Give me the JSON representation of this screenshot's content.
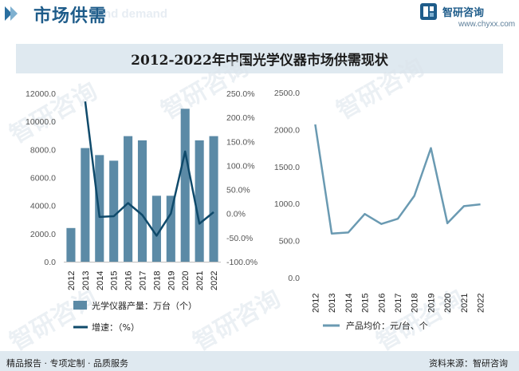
{
  "header": {
    "title": "市场供需",
    "ghost_text": "nd demand"
  },
  "logo": {
    "name": "智研咨询",
    "url": "www.chyxx.com"
  },
  "watermark": "智研咨询",
  "colors": {
    "brand": "#1e5c8a",
    "bar": "#5b8aa6",
    "growth_line": "#0f4a6b",
    "price_line": "#6a9ab2",
    "banner_bg": "#dfe9f0"
  },
  "chart_data": [
    {
      "type": "bar",
      "title": "2012-2022年中国光学仪器市场供需现状",
      "categories": [
        "2012",
        "2013",
        "2014",
        "2015",
        "2016",
        "2017",
        "2018",
        "2019",
        "2020",
        "2021",
        "2022"
      ],
      "series": [
        {
          "name": "光学仪器产量：万台（个）",
          "type": "bar",
          "axis": "left",
          "values": [
            2400,
            8100,
            7600,
            7200,
            8950,
            8650,
            4700,
            4700,
            10900,
            8650,
            8950
          ]
        },
        {
          "name": "增速：（%）",
          "type": "line",
          "axis": "right",
          "values": [
            null,
            233.0,
            -7.0,
            -5.5,
            22.0,
            -3.0,
            -46.0,
            0.0,
            129.0,
            -21.0,
            3.0
          ]
        }
      ],
      "left_axis": {
        "ticks": [
          "0.0",
          "2000.0",
          "4000.0",
          "6000.0",
          "8000.0",
          "10000.0",
          "12000.0"
        ],
        "ylim": [
          0,
          12000
        ]
      },
      "right_axis": {
        "ticks": [
          "-100.0%",
          "-50.0%",
          "0.0%",
          "50.0%",
          "100.0%",
          "150.0%",
          "200.0%",
          "250.0%"
        ],
        "ylim": [
          -100,
          250
        ]
      },
      "grid": false,
      "legend": "bottom"
    },
    {
      "type": "line",
      "categories": [
        "2012",
        "2013",
        "2014",
        "2015",
        "2016",
        "2017",
        "2018",
        "2019",
        "2020",
        "2021",
        "2022"
      ],
      "series": [
        {
          "name": "产品均价：元/台、个",
          "values": [
            2070,
            595,
            610,
            860,
            725,
            795,
            1105,
            1750,
            735,
            965,
            990
          ]
        }
      ],
      "y_axis": {
        "ticks": [
          "0.0",
          "500.0",
          "1000.0",
          "1500.0",
          "2000.0",
          "2500.0"
        ],
        "ylim": [
          0,
          2500
        ]
      },
      "grid": false,
      "legend": "bottom"
    }
  ],
  "footer": {
    "left": "精品报告 · 专项定制 · 品质服务",
    "right": "资料来源：智研咨询"
  }
}
